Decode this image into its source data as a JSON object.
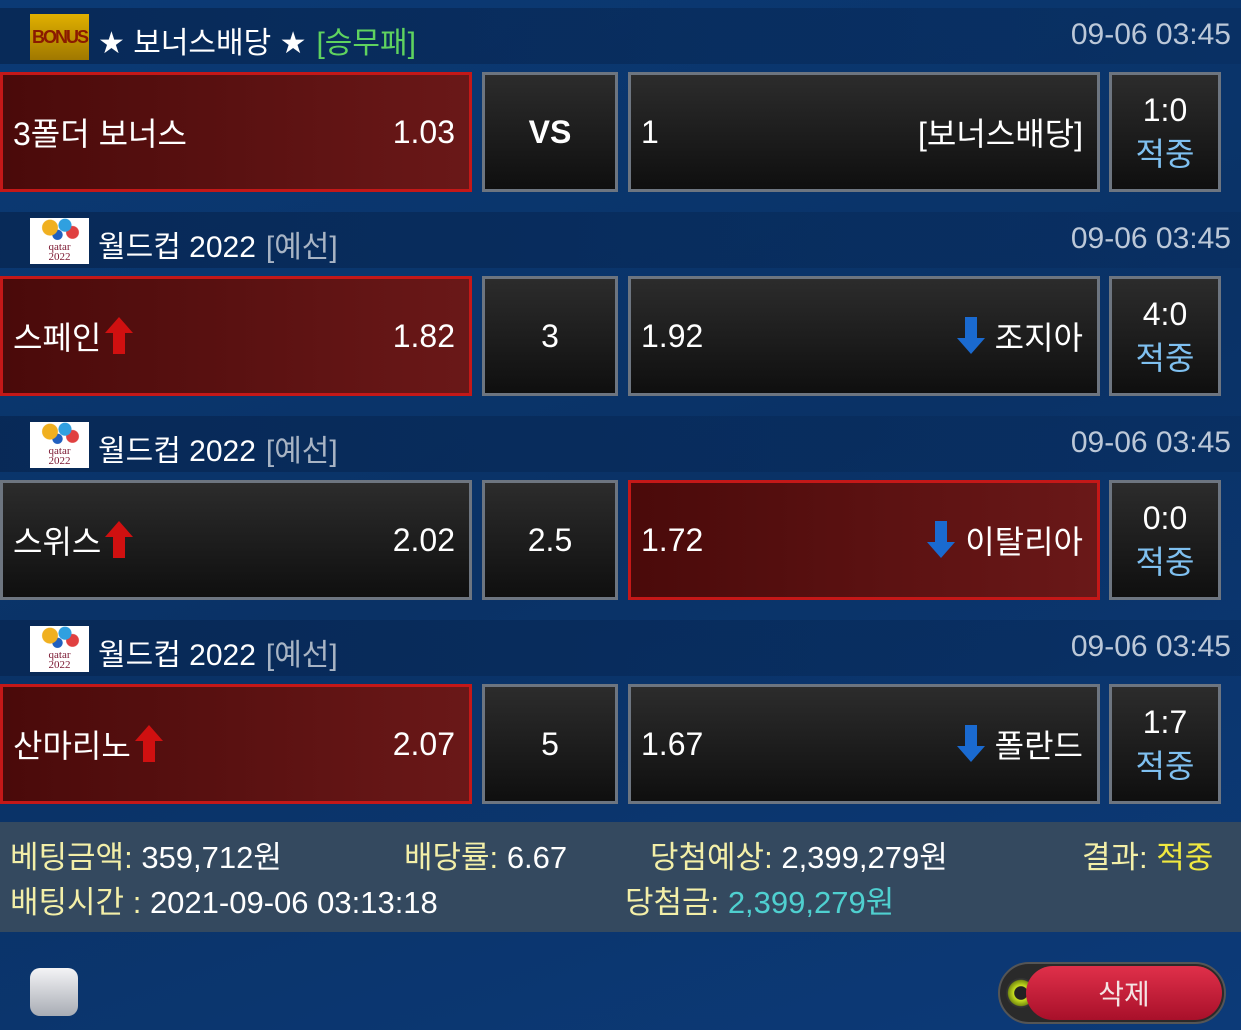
{
  "groups": [
    {
      "logo": "BONUS",
      "title": "★ 보너스배당 ★",
      "tag": "[승무패]",
      "tag_color": "#5fd35f",
      "time": "09-06 03:45",
      "home": {
        "name": "3폴더 보너스",
        "odds": "1.03",
        "arrow": "",
        "selected": true
      },
      "handicap": "VS",
      "away": {
        "odds": "1",
        "name": "[보너스배당]",
        "arrow": "",
        "selected": false
      },
      "score": "1:0",
      "result": "적중"
    },
    {
      "logo": "qatar 2022",
      "title": "월드컵 2022",
      "tag": "[예선]",
      "tag_color": "#a8b4c4",
      "time": "09-06 03:45",
      "home": {
        "name": "스페인",
        "odds": "1.82",
        "arrow": "up",
        "selected": true
      },
      "handicap": "3",
      "away": {
        "odds": "1.92",
        "name": "조지아",
        "arrow": "down",
        "selected": false
      },
      "score": "4:0",
      "result": "적중"
    },
    {
      "logo": "qatar 2022",
      "title": "월드컵 2022",
      "tag": "[예선]",
      "tag_color": "#a8b4c4",
      "time": "09-06 03:45",
      "home": {
        "name": "스위스",
        "odds": "2.02",
        "arrow": "up",
        "selected": false
      },
      "handicap": "2.5",
      "away": {
        "odds": "1.72",
        "name": "이탈리아",
        "arrow": "down",
        "selected": true
      },
      "score": "0:0",
      "result": "적중"
    },
    {
      "logo": "qatar 2022",
      "title": "월드컵 2022",
      "tag": "[예선]",
      "tag_color": "#a8b4c4",
      "time": "09-06 03:45",
      "home": {
        "name": "산마리노",
        "odds": "2.07",
        "arrow": "up",
        "selected": true
      },
      "handicap": "5",
      "away": {
        "odds": "1.67",
        "name": "폴란드",
        "arrow": "down",
        "selected": false
      },
      "score": "1:7",
      "result": "적중"
    }
  ],
  "summary": {
    "bet_amount_label": "베팅금액:",
    "bet_amount": "359,712원",
    "odds_label": "배당률:",
    "odds": "6.67",
    "expected_label": "당첨예상:",
    "expected": "2,399,279원",
    "result_label": "결과:",
    "result": "적중",
    "bet_time_label": "배팅시간 :",
    "bet_time": "2021-09-06 03:13:18",
    "payout_label": "당첨금:",
    "payout": "2,399,279원"
  },
  "colors": {
    "result": "#f0e840",
    "payout": "#4fd0d0",
    "label": "#f3efa8",
    "selected_border": "#c41818"
  },
  "actions": {
    "delete_label": "삭제"
  }
}
